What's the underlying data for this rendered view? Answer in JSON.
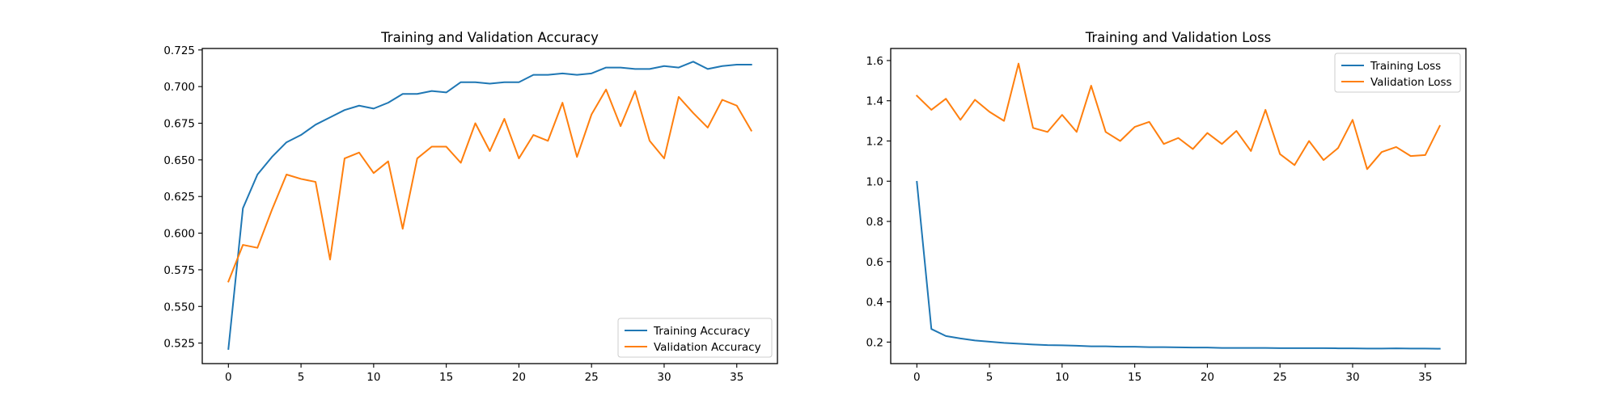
{
  "colors": {
    "training": "#1f77b4",
    "validation": "#ff7f0e"
  },
  "chart_data": [
    {
      "type": "line",
      "title": "Training and Validation Accuracy",
      "xlabel": "",
      "ylabel": "",
      "xlim": [
        -1.8,
        37.8
      ],
      "ylim": [
        0.511,
        0.726
      ],
      "xticks": [
        0,
        5,
        10,
        15,
        20,
        25,
        30,
        35
      ],
      "yticks": [
        0.525,
        0.55,
        0.575,
        0.6,
        0.625,
        0.65,
        0.675,
        0.7,
        0.725
      ],
      "ytick_labels": [
        "0.525",
        "0.550",
        "0.575",
        "0.600",
        "0.625",
        "0.650",
        "0.675",
        "0.700",
        "0.725"
      ],
      "grid": false,
      "legend_position": "lower right",
      "x": [
        0,
        1,
        2,
        3,
        4,
        5,
        6,
        7,
        8,
        9,
        10,
        11,
        12,
        13,
        14,
        15,
        16,
        17,
        18,
        19,
        20,
        21,
        22,
        23,
        24,
        25,
        26,
        27,
        28,
        29,
        30,
        31,
        32,
        33,
        34,
        35,
        36
      ],
      "series": [
        {
          "name": "Training Accuracy",
          "color": "#1f77b4",
          "values": [
            0.521,
            0.617,
            0.64,
            0.652,
            0.662,
            0.667,
            0.674,
            0.679,
            0.684,
            0.687,
            0.685,
            0.689,
            0.695,
            0.695,
            0.697,
            0.696,
            0.703,
            0.703,
            0.702,
            0.703,
            0.703,
            0.708,
            0.708,
            0.709,
            0.708,
            0.709,
            0.713,
            0.713,
            0.712,
            0.712,
            0.714,
            0.713,
            0.717,
            0.712,
            0.714,
            0.715,
            0.715
          ]
        },
        {
          "name": "Validation Accuracy",
          "color": "#ff7f0e",
          "values": [
            0.567,
            0.592,
            0.59,
            0.616,
            0.64,
            0.637,
            0.635,
            0.582,
            0.651,
            0.655,
            0.641,
            0.649,
            0.603,
            0.651,
            0.659,
            0.659,
            0.648,
            0.675,
            0.656,
            0.678,
            0.651,
            0.667,
            0.663,
            0.689,
            0.652,
            0.681,
            0.698,
            0.673,
            0.697,
            0.663,
            0.651,
            0.693,
            0.682,
            0.672,
            0.691,
            0.687,
            0.67
          ]
        }
      ]
    },
    {
      "type": "line",
      "title": "Training and Validation Loss",
      "xlabel": "",
      "ylabel": "",
      "xlim": [
        -1.8,
        37.8
      ],
      "ylim": [
        0.093,
        1.66
      ],
      "xticks": [
        0,
        5,
        10,
        15,
        20,
        25,
        30,
        35
      ],
      "yticks": [
        0.2,
        0.4,
        0.6,
        0.8,
        1.0,
        1.2,
        1.4,
        1.6
      ],
      "ytick_labels": [
        "0.2",
        "0.4",
        "0.6",
        "0.8",
        "1.0",
        "1.2",
        "1.4",
        "1.6"
      ],
      "grid": false,
      "legend_position": "upper right",
      "x": [
        0,
        1,
        2,
        3,
        4,
        5,
        6,
        7,
        8,
        9,
        10,
        11,
        12,
        13,
        14,
        15,
        16,
        17,
        18,
        19,
        20,
        21,
        22,
        23,
        24,
        25,
        26,
        27,
        28,
        29,
        30,
        31,
        32,
        33,
        34,
        35,
        36
      ],
      "series": [
        {
          "name": "Training Loss",
          "color": "#1f77b4",
          "values": [
            0.997,
            0.265,
            0.23,
            0.218,
            0.208,
            0.202,
            0.196,
            0.192,
            0.188,
            0.185,
            0.184,
            0.182,
            0.179,
            0.179,
            0.177,
            0.177,
            0.175,
            0.175,
            0.174,
            0.173,
            0.173,
            0.171,
            0.171,
            0.171,
            0.171,
            0.17,
            0.17,
            0.17,
            0.17,
            0.169,
            0.169,
            0.168,
            0.168,
            0.169,
            0.168,
            0.168,
            0.167
          ]
        },
        {
          "name": "Validation Loss",
          "color": "#ff7f0e",
          "values": [
            1.425,
            1.355,
            1.41,
            1.305,
            1.405,
            1.345,
            1.3,
            1.585,
            1.265,
            1.245,
            1.33,
            1.245,
            1.475,
            1.245,
            1.2,
            1.27,
            1.295,
            1.185,
            1.215,
            1.16,
            1.24,
            1.185,
            1.25,
            1.15,
            1.355,
            1.135,
            1.08,
            1.2,
            1.105,
            1.165,
            1.305,
            1.06,
            1.145,
            1.17,
            1.125,
            1.13,
            1.275
          ]
        }
      ]
    }
  ]
}
